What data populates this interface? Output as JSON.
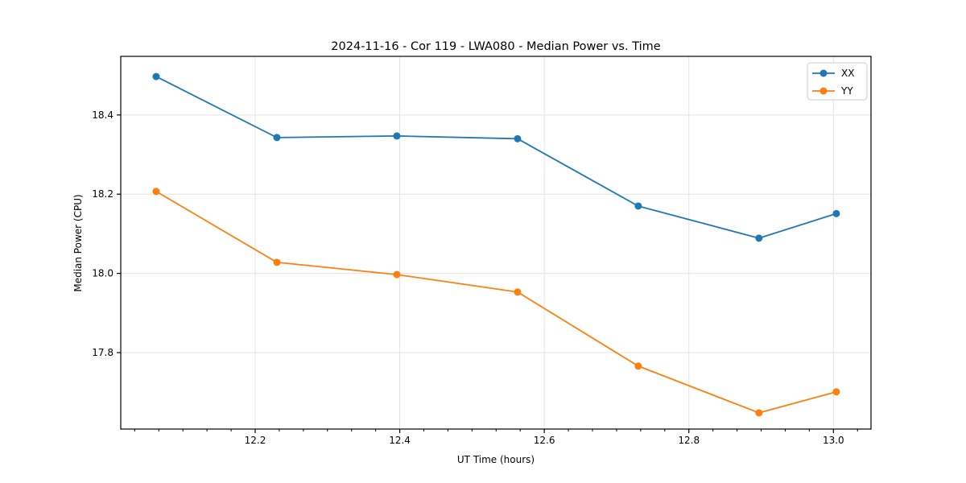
{
  "chart_data": {
    "type": "line",
    "title": "2024-11-16 - Cor 119 - LWA080 - Median Power vs. Time",
    "xlabel": "UT Time (hours)",
    "ylabel": "Median Power (CPU)",
    "xlim": [
      12.014,
      13.052
    ],
    "ylim": [
      17.607,
      18.548
    ],
    "x_ticks": [
      12.2,
      12.4,
      12.6,
      12.8,
      13.0
    ],
    "y_ticks": [
      17.8,
      18.0,
      18.2,
      18.4
    ],
    "x_minor": {
      "step_hours": 0.0333333,
      "per_major": 6
    },
    "grid": true,
    "legend_position": "upper right",
    "x": [
      12.063,
      12.23,
      12.396,
      12.563,
      12.73,
      12.897,
      13.004
    ],
    "series": [
      {
        "name": "XX",
        "color": "#1f77b4",
        "values": [
          18.497,
          18.343,
          18.347,
          18.34,
          18.17,
          18.089,
          18.151
        ]
      },
      {
        "name": "YY",
        "color": "#ff7f0e",
        "values": [
          18.207,
          18.028,
          17.997,
          17.953,
          17.766,
          17.648,
          17.701
        ]
      }
    ]
  },
  "colors": {
    "background": "#ffffff",
    "grid": "#e3e3e3",
    "spine": "#000000",
    "tick": "#000000",
    "series_xx": "#1f77b4",
    "series_yy": "#ff7f0e"
  }
}
